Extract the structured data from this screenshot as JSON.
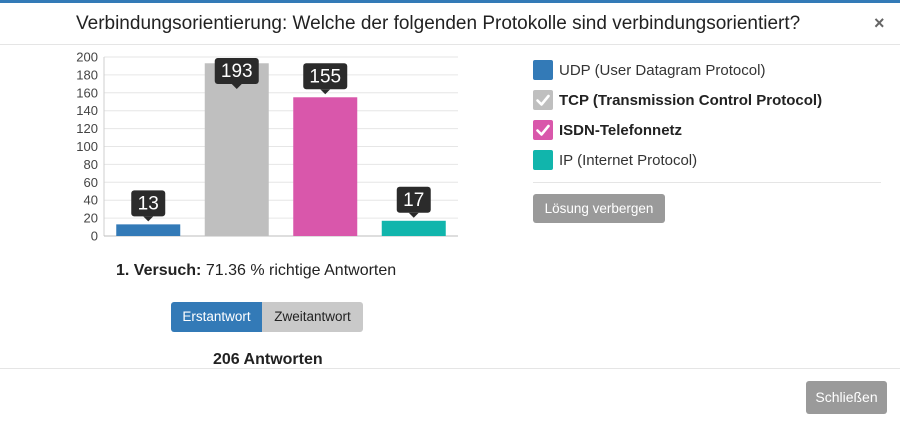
{
  "dialog": {
    "title": "Verbindungsorientierung: Welche der folgenden Protokolle sind verbindungsorientiert?",
    "close_symbol": "×"
  },
  "chart_data": {
    "type": "bar",
    "categories": [
      "UDP",
      "TCP",
      "ISDN",
      "IP"
    ],
    "values": [
      13,
      193,
      155,
      17
    ],
    "colors": [
      "#337ab7",
      "#bfbfbf",
      "#d957ab",
      "#11b5ac"
    ],
    "data_labels": [
      "13",
      "193",
      "155",
      "17"
    ],
    "ylim": [
      0,
      200
    ],
    "yticks": [
      0,
      20,
      40,
      60,
      80,
      100,
      120,
      140,
      160,
      180,
      200
    ],
    "grid": true,
    "title": "",
    "xlabel": "",
    "ylabel": ""
  },
  "legend": [
    {
      "label": "UDP (User Datagram Protocol)",
      "color": "#337ab7",
      "correct": false
    },
    {
      "label": "TCP (Transmission Control Protocol)",
      "color": "#bfbfbf",
      "correct": true
    },
    {
      "label": "ISDN-Telefonnetz",
      "color": "#d957ab",
      "correct": true
    },
    {
      "label": "IP (Internet Protocol)",
      "color": "#11b5ac",
      "correct": false
    }
  ],
  "solution_button": "Lösung verbergen",
  "attempt": {
    "label": "1. Versuch:",
    "value": "71.36 % richtige Antworten"
  },
  "toggle": {
    "first": "Erstantwort",
    "second": "Zweitantwort",
    "active": "first"
  },
  "answers_count": "206 Antworten",
  "footer": {
    "close_button": "Schließen"
  }
}
